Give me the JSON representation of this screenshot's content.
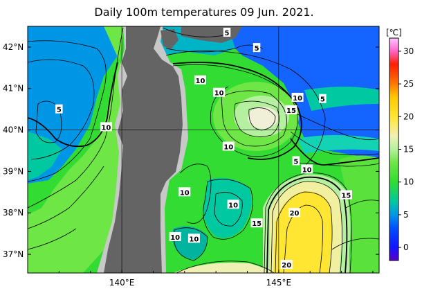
{
  "title": "Daily 100m temperatures 09 Jun. 2021.",
  "lat_axis": {
    "labels": [
      {
        "text": "42°N",
        "lat": 42
      },
      {
        "text": "41°N",
        "lat": 41
      },
      {
        "text": "40°N",
        "lat": 40
      },
      {
        "text": "39°N",
        "lat": 39
      },
      {
        "text": "38°N",
        "lat": 38
      },
      {
        "text": "37°N",
        "lat": 37
      }
    ]
  },
  "lon_axis": {
    "labels": [
      {
        "text": "140°E",
        "lon": 140
      },
      {
        "text": "145°E",
        "lon": 145
      }
    ]
  },
  "extent": {
    "lon_min": 137.0,
    "lon_max": 148.2,
    "lat_min": 36.55,
    "lat_max": 42.5
  },
  "colorbar": {
    "unit": "[℃]",
    "min": -2,
    "max": 32,
    "ticks": [
      "30",
      "25",
      "20",
      "15",
      "10",
      "5",
      "0"
    ],
    "tick_values": [
      30,
      25,
      20,
      15,
      10,
      5,
      0
    ],
    "stops": [
      {
        "v": -2,
        "c": "#5a00c8"
      },
      {
        "v": 0,
        "c": "#1414ff"
      },
      {
        "v": 3,
        "c": "#0050ff"
      },
      {
        "v": 5,
        "c": "#0096e6"
      },
      {
        "v": 7,
        "c": "#00c8a0"
      },
      {
        "v": 10,
        "c": "#32dc32"
      },
      {
        "v": 13,
        "c": "#6ee646"
      },
      {
        "v": 15,
        "c": "#b4f0a0"
      },
      {
        "v": 17,
        "c": "#f0f0b4"
      },
      {
        "v": 20,
        "c": "#ffe632"
      },
      {
        "v": 23,
        "c": "#ffc800"
      },
      {
        "v": 25,
        "c": "#ff7800"
      },
      {
        "v": 28,
        "c": "#ff1e00"
      },
      {
        "v": 30,
        "c": "#ff64c8"
      },
      {
        "v": 32,
        "c": "#ffc8ff"
      }
    ]
  },
  "contour_labels": [
    {
      "text": "5",
      "lon": 143.35,
      "lat": 42.35
    },
    {
      "text": "5",
      "lon": 144.3,
      "lat": 41.98
    },
    {
      "text": "5",
      "lon": 138.0,
      "lat": 40.5
    },
    {
      "text": "10",
      "lon": 139.5,
      "lat": 40.07
    },
    {
      "text": "10",
      "lon": 142.5,
      "lat": 41.2
    },
    {
      "text": "10",
      "lon": 143.1,
      "lat": 40.9
    },
    {
      "text": "10",
      "lon": 145.6,
      "lat": 40.78
    },
    {
      "text": "15",
      "lon": 145.4,
      "lat": 40.48
    },
    {
      "text": "5",
      "lon": 146.4,
      "lat": 40.75
    },
    {
      "text": "10",
      "lon": 143.4,
      "lat": 39.6
    },
    {
      "text": "5",
      "lon": 145.55,
      "lat": 39.25
    },
    {
      "text": "10",
      "lon": 145.9,
      "lat": 39.05
    },
    {
      "text": "10",
      "lon": 142.0,
      "lat": 38.5
    },
    {
      "text": "15",
      "lon": 147.15,
      "lat": 38.43
    },
    {
      "text": "10",
      "lon": 143.55,
      "lat": 38.2
    },
    {
      "text": "20",
      "lon": 145.5,
      "lat": 38.0
    },
    {
      "text": "15",
      "lon": 144.3,
      "lat": 37.75
    },
    {
      "text": "10",
      "lon": 141.7,
      "lat": 37.42
    },
    {
      "text": "10",
      "lon": 142.3,
      "lat": 37.38
    },
    {
      "text": "20",
      "lon": 145.25,
      "lat": 36.75
    }
  ]
}
